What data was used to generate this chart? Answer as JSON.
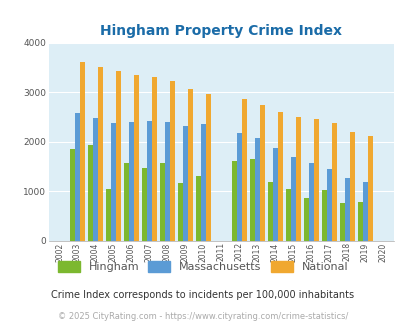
{
  "title": "Hingham Property Crime Index",
  "years": [
    2002,
    2003,
    2004,
    2005,
    2006,
    2007,
    2008,
    2009,
    2010,
    2011,
    2012,
    2013,
    2014,
    2015,
    2016,
    2017,
    2018,
    2019,
    2020
  ],
  "hingham": [
    0,
    1850,
    1930,
    1040,
    1570,
    1480,
    1570,
    1175,
    1310,
    0,
    1620,
    1660,
    1185,
    1050,
    860,
    1020,
    760,
    790,
    0
  ],
  "massachusetts": [
    0,
    2580,
    2480,
    2380,
    2410,
    2420,
    2410,
    2320,
    2360,
    0,
    2170,
    2070,
    1870,
    1700,
    1570,
    1460,
    1270,
    1185,
    0
  ],
  "national": [
    0,
    3610,
    3510,
    3440,
    3360,
    3310,
    3240,
    3060,
    2960,
    0,
    2870,
    2750,
    2600,
    2500,
    2460,
    2380,
    2200,
    2120,
    0
  ],
  "hingham_color": "#7cb82f",
  "mass_color": "#5b9bd5",
  "national_color": "#f0a830",
  "bg_color": "#ddeef6",
  "ylim": [
    0,
    4000
  ],
  "yticks": [
    0,
    1000,
    2000,
    3000,
    4000
  ],
  "footnote1": "Crime Index corresponds to incidents per 100,000 inhabitants",
  "footnote2": "© 2025 CityRating.com - https://www.cityrating.com/crime-statistics/",
  "legend_labels": [
    "Hingham",
    "Massachusetts",
    "National"
  ]
}
